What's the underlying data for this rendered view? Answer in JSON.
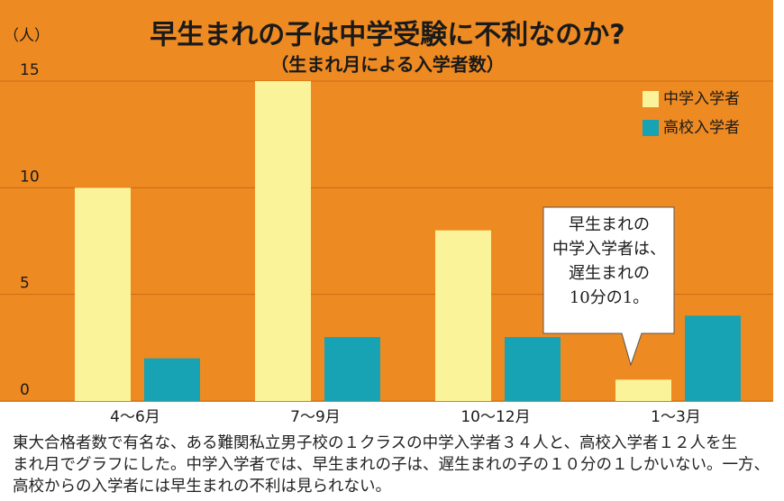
{
  "chart_data": {
    "type": "bar",
    "title": "早生まれの子は中学受験に不利なのか?",
    "subtitle": "（生まれ月による入学者数）",
    "y_label": "（人）",
    "categories": [
      "4〜6月",
      "7〜9月",
      "10〜12月",
      "1〜3月"
    ],
    "series": [
      {
        "name": "中学入学者",
        "color": "#fbf39a",
        "values": [
          10,
          15,
          8,
          1
        ]
      },
      {
        "name": "高校入学者",
        "color": "#17a3b3",
        "values": [
          2,
          3,
          3,
          4
        ]
      }
    ],
    "ylim": [
      0,
      15
    ],
    "yticks": [
      0,
      5,
      10,
      15
    ],
    "grid": true,
    "legend": "top-right",
    "annotation": [
      "早生まれの",
      "中学入学者は、",
      "遅生まれの",
      "10分の1。"
    ]
  },
  "caption": [
    "東大合格者数で有名な、ある難関私立男子校の１クラスの中学入学者３４人と、高校入学者１２人を生",
    "まれ月でグラフにした。中学入学者では、早生まれの子は、遅生まれの子の１０分の１しかいない。一方、",
    "高校からの入学者には早生まれの不利は見られない。"
  ]
}
